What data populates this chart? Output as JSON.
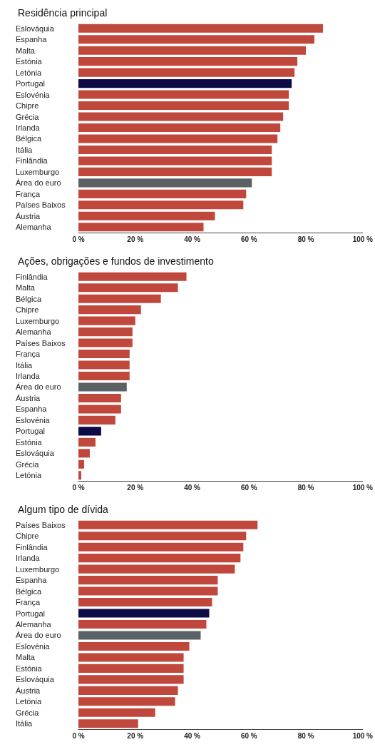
{
  "chart_data": [
    {
      "type": "bar",
      "orientation": "horizontal",
      "title": "Residência principal",
      "categories": [
        "Eslováquia",
        "Espanha",
        "Malta",
        "Estónia",
        "Letónia",
        "Portugal",
        "Eslovénia",
        "Chipre",
        "Grécia",
        "Irlanda",
        "Bélgica",
        "Itália",
        "Finlândia",
        "Luxemburgo",
        "Área do euro",
        "França",
        "Países Baixos",
        "Áustria",
        "Alemanha"
      ],
      "values": [
        86,
        83,
        80,
        77,
        76,
        75,
        74,
        74,
        72,
        71,
        70,
        68,
        68,
        68,
        61,
        59,
        58,
        48,
        44
      ],
      "colors": [
        "#c0473b",
        "#c0473b",
        "#c0473b",
        "#c0473b",
        "#c0473b",
        "#0d0a45",
        "#c0473b",
        "#c0473b",
        "#c0473b",
        "#c0473b",
        "#c0473b",
        "#c0473b",
        "#c0473b",
        "#c0473b",
        "#5b6266",
        "#c0473b",
        "#c0473b",
        "#c0473b",
        "#c0473b"
      ],
      "xlim": [
        0,
        100
      ],
      "xticks": [
        {
          "value": 0,
          "label": "0 %"
        },
        {
          "value": 20,
          "label": "20 %"
        },
        {
          "value": 40,
          "label": "40 %"
        },
        {
          "value": 60,
          "label": "60 %"
        },
        {
          "value": 80,
          "label": "80 %"
        },
        {
          "value": 100,
          "label": "100 %"
        }
      ],
      "grid": false
    },
    {
      "type": "bar",
      "orientation": "horizontal",
      "title": "Ações, obrigações e fundos de investimento",
      "categories": [
        "Finlândia",
        "Malta",
        "Bélgica",
        "Chipre",
        "Luxemburgo",
        "Alemanha",
        "Países Baixos",
        "França",
        "Itália",
        "Irlanda",
        "Área do euro",
        "Áustria",
        "Espanha",
        "Eslovénia",
        "Portugal",
        "Estónia",
        "Eslováquia",
        "Grécia",
        "Letónia"
      ],
      "values": [
        38,
        35,
        29,
        22,
        20,
        19,
        19,
        18,
        18,
        18,
        17,
        15,
        15,
        13,
        8,
        6,
        4,
        2,
        1
      ],
      "colors": [
        "#c0473b",
        "#c0473b",
        "#c0473b",
        "#c0473b",
        "#c0473b",
        "#c0473b",
        "#c0473b",
        "#c0473b",
        "#c0473b",
        "#c0473b",
        "#5b6266",
        "#c0473b",
        "#c0473b",
        "#c0473b",
        "#0d0a45",
        "#c0473b",
        "#c0473b",
        "#c0473b",
        "#c0473b"
      ],
      "xlim": [
        0,
        100
      ],
      "xticks": [
        {
          "value": 0,
          "label": "0 %"
        },
        {
          "value": 20,
          "label": "20 %"
        },
        {
          "value": 40,
          "label": "40 %"
        },
        {
          "value": 60,
          "label": "60 %"
        },
        {
          "value": 80,
          "label": "80 %"
        },
        {
          "value": 100,
          "label": "100 %"
        }
      ],
      "grid": false
    },
    {
      "type": "bar",
      "orientation": "horizontal",
      "title": "Algum tipo de dívida",
      "categories": [
        "Países Baixos",
        "Chipre",
        "Finlândia",
        "Irlanda",
        "Luxemburgo",
        "Espanha",
        "Bélgica",
        "França",
        "Portugal",
        "Alemanha",
        "Área do euro",
        "Eslovénia",
        "Malta",
        "Estónia",
        "Eslováquia",
        "Áustria",
        "Letónia",
        "Grécia",
        "Itália"
      ],
      "values": [
        63,
        59,
        58,
        57,
        55,
        49,
        49,
        47,
        46,
        45,
        43,
        39,
        37,
        37,
        37,
        35,
        34,
        27,
        21
      ],
      "colors": [
        "#c0473b",
        "#c0473b",
        "#c0473b",
        "#c0473b",
        "#c0473b",
        "#c0473b",
        "#c0473b",
        "#c0473b",
        "#0d0a45",
        "#c0473b",
        "#5b6266",
        "#c0473b",
        "#c0473b",
        "#c0473b",
        "#c0473b",
        "#c0473b",
        "#c0473b",
        "#c0473b",
        "#c0473b"
      ],
      "xlim": [
        0,
        100
      ],
      "xticks": [
        {
          "value": 0,
          "label": "0 %"
        },
        {
          "value": 20,
          "label": "20 %"
        },
        {
          "value": 40,
          "label": "40 %"
        },
        {
          "value": 60,
          "label": "60 %"
        },
        {
          "value": 80,
          "label": "80 %"
        },
        {
          "value": 100,
          "label": "100 %"
        }
      ],
      "grid": false
    }
  ]
}
